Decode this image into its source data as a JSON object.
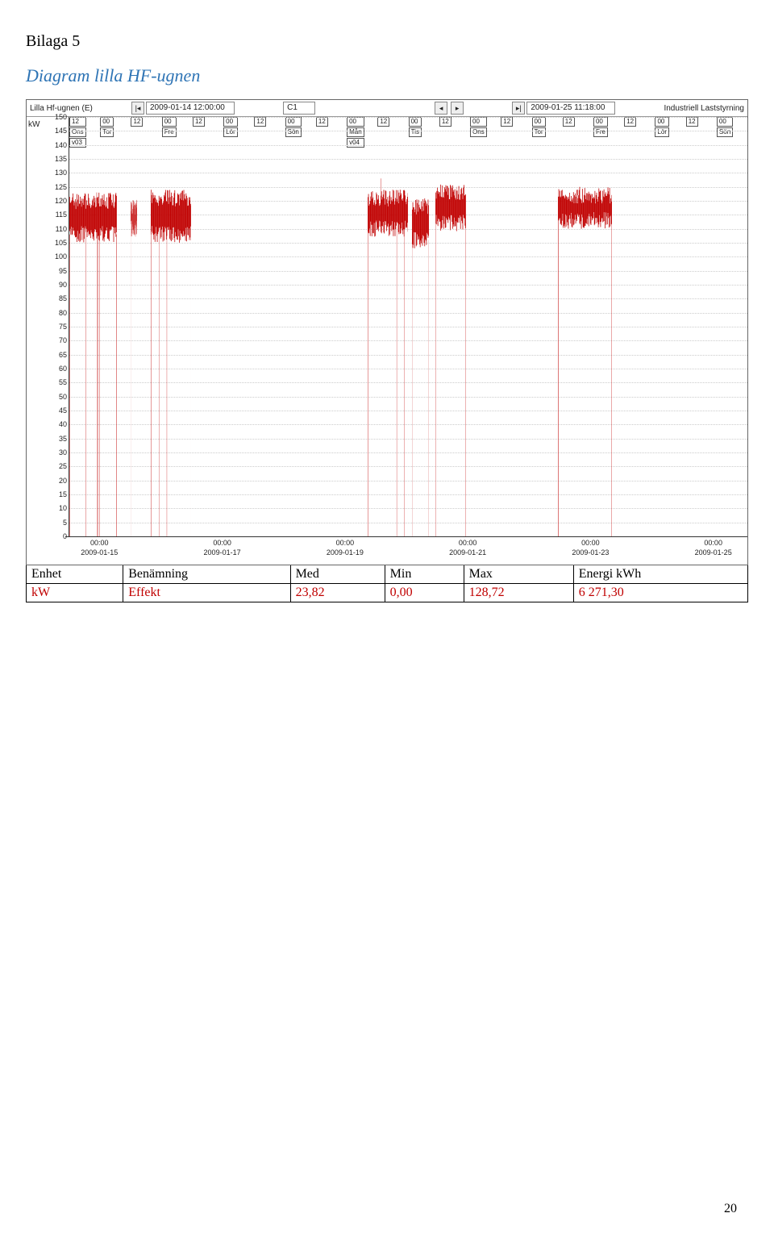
{
  "page": {
    "bilaga": "Bilaga 5",
    "title": "Diagram lilla HF-ugnen",
    "page_number": "20"
  },
  "chart": {
    "header": {
      "left_title": "Lilla Hf-ugnen (E)",
      "right_title": "Industriell Laststyrning",
      "start_ts": "2009-01-14 12:00:00",
      "end_ts": "2009-01-25 11:18:00",
      "center": "C1"
    },
    "y": {
      "unit": "kW",
      "min": 0,
      "max": 150,
      "step": 5
    },
    "x_ticks": [
      {
        "pos": 5,
        "time": "00:00",
        "date": "2009-01-15"
      },
      {
        "pos": 23,
        "time": "00:00",
        "date": "2009-01-17"
      },
      {
        "pos": 41,
        "time": "00:00",
        "date": "2009-01-19"
      },
      {
        "pos": 59,
        "time": "00:00",
        "date": "2009-01-21"
      },
      {
        "pos": 77,
        "time": "00:00",
        "date": "2009-01-23"
      },
      {
        "pos": 95,
        "time": "00:00",
        "date": "2009-01-25"
      }
    ],
    "days": [
      {
        "h": "12",
        "d": "Ons",
        "extra": "v03"
      },
      {
        "h": "00",
        "d": "Tor"
      },
      {
        "h": "12"
      },
      {
        "h": "00",
        "d": "Fre"
      },
      {
        "h": "12"
      },
      {
        "h": "00",
        "d": "Lör"
      },
      {
        "h": "12"
      },
      {
        "h": "00",
        "d": "Sön"
      },
      {
        "h": "12"
      },
      {
        "h": "00",
        "d": "Mån",
        "extra": "v04"
      },
      {
        "h": "12"
      },
      {
        "h": "00",
        "d": "Tis"
      },
      {
        "h": "12"
      },
      {
        "h": "00",
        "d": "Ons"
      },
      {
        "h": "12"
      },
      {
        "h": "00",
        "d": "Tor"
      },
      {
        "h": "12"
      },
      {
        "h": "00",
        "d": "Fre"
      },
      {
        "h": "12"
      },
      {
        "h": "00",
        "d": "Lör"
      },
      {
        "h": "12"
      },
      {
        "h": "00",
        "d": "Sön"
      }
    ],
    "bursts": [
      {
        "start": 0,
        "end": 7,
        "low": 108,
        "high": 120,
        "peak": 123
      },
      {
        "start": 9,
        "end": 10,
        "low": 110,
        "high": 118,
        "peak": 118
      },
      {
        "start": 12,
        "end": 18,
        "low": 108,
        "high": 121,
        "peak": 124
      },
      {
        "start": 44,
        "end": 50,
        "low": 110,
        "high": 121,
        "peak": 128
      },
      {
        "start": 50.5,
        "end": 53,
        "low": 106,
        "high": 118,
        "peak": 120
      },
      {
        "start": 54,
        "end": 58.5,
        "low": 112,
        "high": 123,
        "peak": 125
      },
      {
        "start": 72,
        "end": 80,
        "low": 113,
        "high": 122,
        "peak": 124
      }
    ],
    "colors": {
      "line": "#c00000",
      "grid": "#cccccc",
      "border": "#666666",
      "background": "#ffffff"
    }
  },
  "table": {
    "columns": [
      "Enhet",
      "Benämning",
      "Med",
      "Min",
      "Max",
      "Energi kWh"
    ],
    "row": {
      "enhet": "kW",
      "benamning": "Effekt",
      "med": "23,82",
      "min": "0,00",
      "max": "128,72",
      "energi": "6 271,30"
    }
  }
}
